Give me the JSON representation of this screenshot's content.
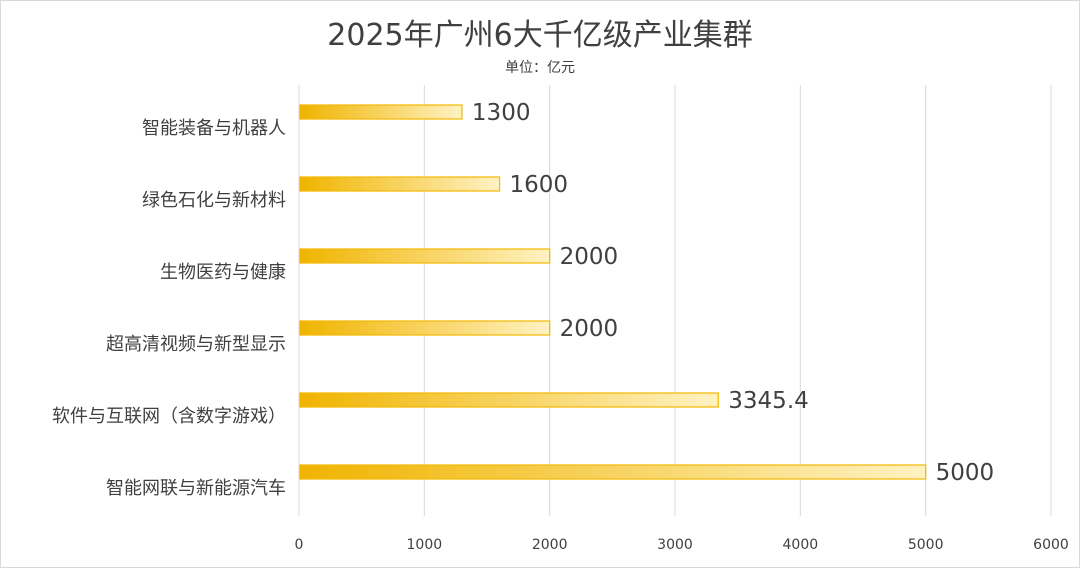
{
  "chart_data": {
    "type": "bar",
    "orientation": "horizontal",
    "title": "2025年广州6大千亿级产业集群",
    "subtitle": "单位：亿元",
    "categories": [
      "智能装备与机器人",
      "绿色石化与新材料",
      "生物医药与健康",
      "超高清视频与新型显示",
      "软件与互联网（含数字游戏）",
      "智能网联与新能源汽车"
    ],
    "values": [
      1300,
      1600,
      2000,
      2000,
      3345.4,
      5000
    ],
    "data_labels": [
      "1300",
      "1600",
      "2000",
      "2000",
      "3345.4",
      "5000"
    ],
    "xlim": [
      0,
      6000
    ],
    "xticks": [
      0,
      1000,
      2000,
      3000,
      4000,
      5000,
      6000
    ],
    "xtick_labels": [
      "0",
      "1000",
      "2000",
      "3000",
      "4000",
      "5000",
      "6000"
    ],
    "grid": "vertical",
    "legend": "none",
    "colors": {
      "bar_gradient_start": "#f0b400",
      "bar_gradient_end": "#fff2c2",
      "bar_border": "#f2b800",
      "gridline": "#d9d9d9",
      "text": "#404040"
    }
  }
}
